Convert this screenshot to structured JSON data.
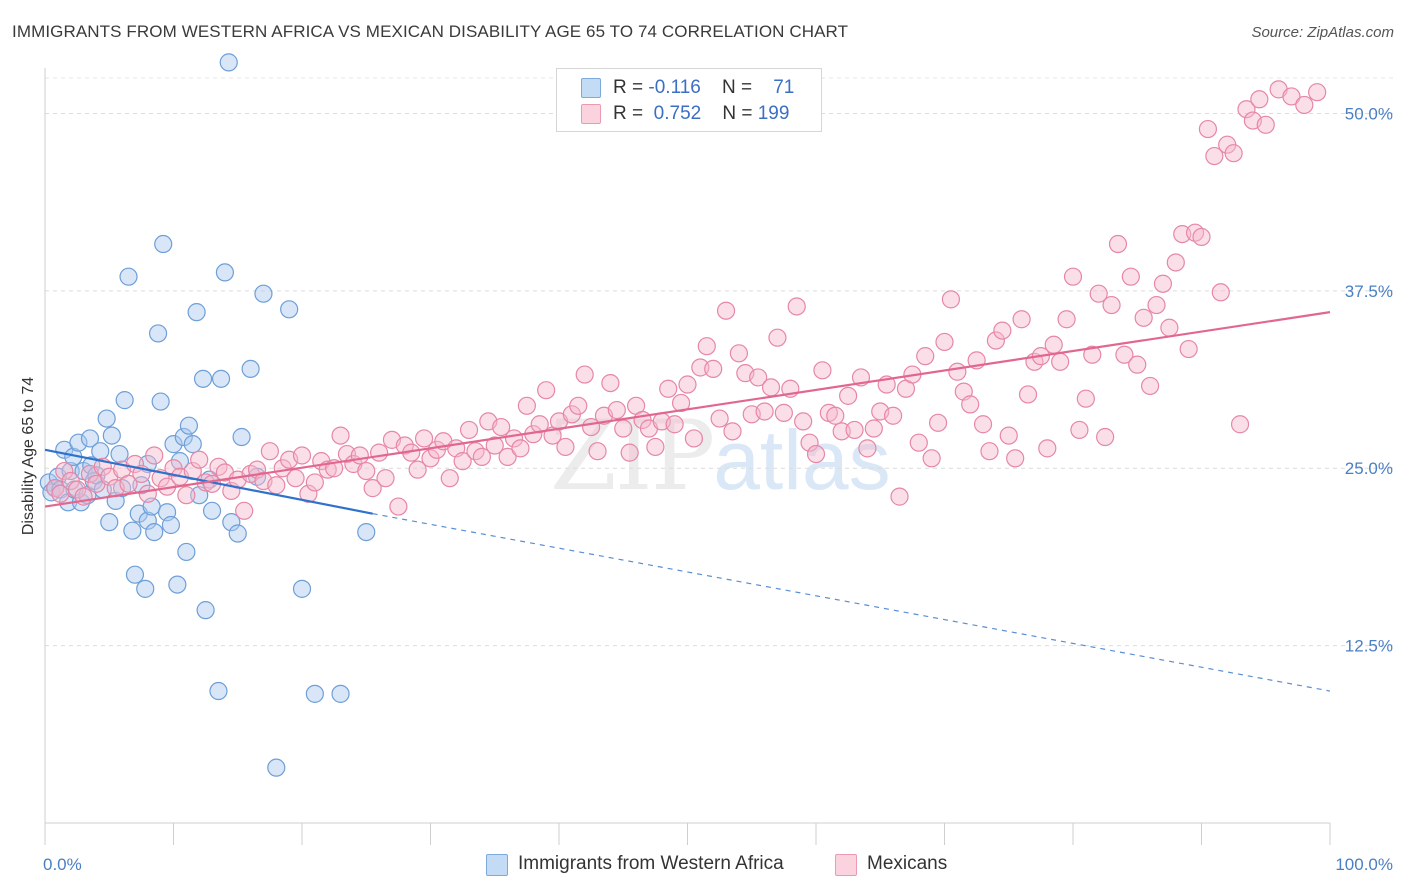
{
  "header": {
    "title": "IMMIGRANTS FROM WESTERN AFRICA VS MEXICAN DISABILITY AGE 65 TO 74 CORRELATION CHART",
    "source": "Source: ZipAtlas.com"
  },
  "legend": {
    "rows": [
      {
        "r_label": "R =",
        "r_value": "-0.116",
        "n_label": "N =",
        "n_value": "71",
        "color": "#a9c8f0"
      },
      {
        "r_label": "R =",
        "r_value": "0.752",
        "n_label": "N =",
        "n_value": "199",
        "color": "#f6b9cc"
      }
    ]
  },
  "watermark": {
    "zip": "ZIP",
    "atlas": "atlas"
  },
  "chart_data": {
    "type": "scatter",
    "title": "IMMIGRANTS FROM WESTERN AFRICA VS MEXICAN DISABILITY AGE 65 TO 74 CORRELATION CHART",
    "xlabel": "",
    "ylabel": "Disability Age 65 to 74",
    "xlim": [
      0,
      100
    ],
    "ylim": [
      0,
      52.5
    ],
    "x_tick_labels": [
      "0.0%",
      "100.0%"
    ],
    "y_ticks": [
      12.5,
      25.0,
      37.5,
      50.0
    ],
    "y_tick_labels": [
      "12.5%",
      "25.0%",
      "37.5%",
      "50.0%"
    ],
    "grid": true,
    "legend_position": "top-center",
    "series": [
      {
        "name": "Immigrants from Western Africa",
        "color": "#a9c8f0",
        "stroke": "#6e9fd8",
        "trend_color": "#2f72cc",
        "trend": {
          "solid": [
            [
              0,
              26.3
            ],
            [
              25.5,
              21.8
            ]
          ],
          "dashed": [
            [
              25.5,
              21.8
            ],
            [
              100,
              9.3
            ]
          ]
        },
        "points": [
          [
            0.3,
            24.0
          ],
          [
            0.5,
            23.3
          ],
          [
            0.8,
            23.6
          ],
          [
            1.0,
            24.4
          ],
          [
            1.2,
            23.5
          ],
          [
            1.5,
            26.3
          ],
          [
            1.8,
            22.6
          ],
          [
            2.0,
            24.8
          ],
          [
            2.2,
            25.8
          ],
          [
            2.3,
            23.5
          ],
          [
            2.6,
            26.8
          ],
          [
            2.8,
            22.6
          ],
          [
            3.0,
            24.8
          ],
          [
            3.3,
            23.1
          ],
          [
            3.5,
            27.1
          ],
          [
            3.6,
            25.2
          ],
          [
            3.8,
            24.1
          ],
          [
            4.0,
            24.5
          ],
          [
            4.3,
            26.2
          ],
          [
            4.5,
            23.5
          ],
          [
            4.8,
            28.5
          ],
          [
            5.0,
            21.2
          ],
          [
            5.2,
            27.3
          ],
          [
            5.5,
            22.7
          ],
          [
            5.8,
            26.0
          ],
          [
            6.0,
            23.6
          ],
          [
            6.2,
            29.8
          ],
          [
            6.5,
            38.5
          ],
          [
            6.8,
            20.6
          ],
          [
            7.0,
            17.5
          ],
          [
            7.3,
            21.8
          ],
          [
            7.5,
            23.8
          ],
          [
            7.8,
            16.5
          ],
          [
            8.0,
            21.3
          ],
          [
            8.3,
            22.3
          ],
          [
            8.5,
            20.5
          ],
          [
            8.8,
            34.5
          ],
          [
            9.0,
            29.7
          ],
          [
            9.2,
            40.8
          ],
          [
            9.5,
            21.9
          ],
          [
            9.8,
            21.0
          ],
          [
            10.0,
            26.7
          ],
          [
            10.3,
            16.8
          ],
          [
            10.5,
            25.5
          ],
          [
            10.8,
            27.2
          ],
          [
            11.0,
            19.1
          ],
          [
            11.2,
            28.0
          ],
          [
            11.5,
            26.7
          ],
          [
            11.8,
            36.0
          ],
          [
            12.0,
            23.1
          ],
          [
            12.3,
            31.3
          ],
          [
            12.5,
            15.0
          ],
          [
            12.8,
            24.2
          ],
          [
            13.0,
            22.0
          ],
          [
            13.5,
            9.3
          ],
          [
            13.7,
            31.3
          ],
          [
            14.0,
            38.8
          ],
          [
            14.3,
            53.6
          ],
          [
            14.5,
            21.2
          ],
          [
            15.0,
            20.4
          ],
          [
            15.3,
            27.2
          ],
          [
            16.0,
            32.0
          ],
          [
            16.5,
            24.4
          ],
          [
            17.0,
            37.3
          ],
          [
            18.0,
            3.9
          ],
          [
            19.0,
            36.2
          ],
          [
            20.0,
            16.5
          ],
          [
            21.0,
            9.1
          ],
          [
            23.0,
            9.1
          ],
          [
            25.0,
            20.5
          ],
          [
            8.0,
            25.3
          ]
        ]
      },
      {
        "name": "Mexicans",
        "color": "#f6b9cc",
        "stroke": "#e687a6",
        "trend_color": "#e2678f",
        "trend": {
          "solid": [
            [
              0,
              22.3
            ],
            [
              100,
              36.0
            ]
          ]
        },
        "points": [
          [
            0.8,
            23.6
          ],
          [
            1.2,
            23.2
          ],
          [
            1.5,
            24.8
          ],
          [
            2.0,
            24.1
          ],
          [
            2.5,
            23.5
          ],
          [
            3.0,
            23.0
          ],
          [
            3.5,
            24.6
          ],
          [
            4.0,
            23.9
          ],
          [
            4.5,
            25.1
          ],
          [
            5.0,
            24.4
          ],
          [
            5.5,
            23.6
          ],
          [
            6.0,
            24.9
          ],
          [
            6.5,
            23.9
          ],
          [
            7.0,
            25.3
          ],
          [
            7.5,
            24.6
          ],
          [
            8.0,
            23.2
          ],
          [
            8.5,
            25.9
          ],
          [
            9.0,
            24.3
          ],
          [
            9.5,
            23.7
          ],
          [
            10.0,
            25.0
          ],
          [
            10.5,
            24.4
          ],
          [
            11.0,
            23.1
          ],
          [
            11.5,
            24.8
          ],
          [
            12.0,
            25.6
          ],
          [
            12.5,
            24.0
          ],
          [
            13.0,
            23.9
          ],
          [
            13.5,
            25.1
          ],
          [
            14.0,
            24.7
          ],
          [
            14.5,
            23.4
          ],
          [
            15.0,
            24.2
          ],
          [
            15.5,
            22.0
          ],
          [
            16.0,
            24.6
          ],
          [
            16.5,
            24.9
          ],
          [
            17.0,
            24.1
          ],
          [
            17.5,
            26.2
          ],
          [
            18.0,
            23.8
          ],
          [
            18.5,
            25.0
          ],
          [
            19.0,
            25.6
          ],
          [
            19.5,
            24.3
          ],
          [
            20.0,
            25.9
          ],
          [
            20.5,
            23.2
          ],
          [
            21.0,
            24.0
          ],
          [
            21.5,
            25.5
          ],
          [
            22.0,
            24.9
          ],
          [
            22.5,
            25.0
          ],
          [
            23.0,
            27.3
          ],
          [
            23.5,
            26.0
          ],
          [
            24.0,
            25.3
          ],
          [
            24.5,
            25.9
          ],
          [
            25.0,
            24.8
          ],
          [
            25.5,
            23.6
          ],
          [
            26.0,
            26.1
          ],
          [
            26.5,
            24.3
          ],
          [
            27.0,
            27.0
          ],
          [
            27.5,
            22.3
          ],
          [
            28.0,
            26.6
          ],
          [
            28.5,
            26.1
          ],
          [
            29.0,
            24.9
          ],
          [
            29.5,
            27.1
          ],
          [
            30.0,
            25.7
          ],
          [
            30.5,
            26.3
          ],
          [
            31.0,
            26.9
          ],
          [
            31.5,
            24.3
          ],
          [
            32.0,
            26.4
          ],
          [
            32.5,
            25.5
          ],
          [
            33.0,
            27.7
          ],
          [
            33.5,
            26.2
          ],
          [
            34.0,
            25.8
          ],
          [
            34.5,
            28.3
          ],
          [
            35.0,
            26.6
          ],
          [
            35.5,
            27.9
          ],
          [
            36.0,
            25.8
          ],
          [
            36.5,
            27.1
          ],
          [
            37.0,
            26.4
          ],
          [
            37.5,
            29.4
          ],
          [
            38.0,
            27.4
          ],
          [
            38.5,
            28.1
          ],
          [
            39.0,
            30.5
          ],
          [
            39.5,
            27.3
          ],
          [
            40.0,
            28.3
          ],
          [
            40.5,
            26.5
          ],
          [
            41.0,
            28.8
          ],
          [
            41.5,
            29.4
          ],
          [
            42.0,
            31.6
          ],
          [
            42.5,
            27.9
          ],
          [
            43.0,
            26.2
          ],
          [
            43.5,
            28.7
          ],
          [
            44.0,
            31.0
          ],
          [
            44.5,
            29.1
          ],
          [
            45.0,
            27.8
          ],
          [
            45.5,
            26.1
          ],
          [
            46.0,
            29.4
          ],
          [
            46.5,
            28.4
          ],
          [
            47.0,
            27.8
          ],
          [
            47.5,
            26.5
          ],
          [
            48.0,
            28.3
          ],
          [
            48.5,
            30.6
          ],
          [
            49.0,
            28.1
          ],
          [
            49.5,
            29.6
          ],
          [
            50.0,
            30.9
          ],
          [
            50.5,
            27.1
          ],
          [
            51.0,
            32.1
          ],
          [
            51.5,
            33.6
          ],
          [
            52.0,
            32.0
          ],
          [
            52.5,
            28.5
          ],
          [
            53.0,
            36.1
          ],
          [
            53.5,
            27.6
          ],
          [
            54.0,
            33.1
          ],
          [
            54.5,
            31.7
          ],
          [
            55.0,
            28.8
          ],
          [
            55.5,
            31.4
          ],
          [
            56.0,
            29.0
          ],
          [
            56.5,
            30.7
          ],
          [
            57.0,
            34.2
          ],
          [
            57.5,
            28.9
          ],
          [
            58.0,
            30.6
          ],
          [
            58.5,
            36.4
          ],
          [
            59.0,
            28.3
          ],
          [
            59.5,
            26.8
          ],
          [
            60.0,
            26.0
          ],
          [
            60.5,
            31.9
          ],
          [
            61.0,
            28.9
          ],
          [
            61.5,
            28.7
          ],
          [
            62.0,
            27.6
          ],
          [
            62.5,
            30.1
          ],
          [
            63.0,
            27.7
          ],
          [
            63.5,
            31.4
          ],
          [
            64.0,
            26.4
          ],
          [
            64.5,
            27.8
          ],
          [
            65.0,
            29.0
          ],
          [
            65.5,
            30.9
          ],
          [
            66.0,
            28.7
          ],
          [
            66.5,
            23.0
          ],
          [
            67.0,
            30.6
          ],
          [
            67.5,
            31.6
          ],
          [
            68.0,
            26.8
          ],
          [
            68.5,
            32.9
          ],
          [
            69.0,
            25.7
          ],
          [
            69.5,
            28.2
          ],
          [
            70.0,
            33.9
          ],
          [
            70.5,
            36.9
          ],
          [
            71.0,
            31.8
          ],
          [
            71.5,
            30.4
          ],
          [
            72.0,
            29.5
          ],
          [
            72.5,
            32.6
          ],
          [
            73.0,
            28.1
          ],
          [
            73.5,
            26.2
          ],
          [
            74.0,
            34.0
          ],
          [
            74.5,
            34.7
          ],
          [
            75.0,
            27.3
          ],
          [
            75.5,
            25.7
          ],
          [
            76.0,
            35.5
          ],
          [
            76.5,
            30.2
          ],
          [
            77.0,
            32.5
          ],
          [
            77.5,
            32.9
          ],
          [
            78.0,
            26.4
          ],
          [
            78.5,
            33.7
          ],
          [
            79.0,
            32.5
          ],
          [
            79.5,
            35.5
          ],
          [
            80.0,
            38.5
          ],
          [
            80.5,
            27.7
          ],
          [
            81.0,
            29.9
          ],
          [
            81.5,
            33.0
          ],
          [
            82.0,
            37.3
          ],
          [
            82.5,
            27.2
          ],
          [
            83.0,
            36.5
          ],
          [
            83.5,
            40.8
          ],
          [
            84.0,
            33.0
          ],
          [
            84.5,
            38.5
          ],
          [
            85.0,
            32.3
          ],
          [
            85.5,
            35.6
          ],
          [
            86.0,
            30.8
          ],
          [
            86.5,
            36.5
          ],
          [
            87.0,
            38.0
          ],
          [
            87.5,
            34.9
          ],
          [
            88.0,
            39.5
          ],
          [
            88.5,
            41.5
          ],
          [
            89.0,
            33.4
          ],
          [
            89.5,
            41.6
          ],
          [
            90.0,
            41.3
          ],
          [
            90.5,
            48.9
          ],
          [
            91.0,
            47.0
          ],
          [
            91.5,
            37.4
          ],
          [
            92.0,
            47.8
          ],
          [
            92.5,
            47.2
          ],
          [
            93.0,
            28.1
          ],
          [
            93.5,
            50.3
          ],
          [
            94.0,
            49.5
          ],
          [
            94.5,
            51.0
          ],
          [
            95.0,
            49.2
          ],
          [
            96.0,
            51.7
          ],
          [
            97.0,
            51.2
          ],
          [
            98.0,
            50.6
          ],
          [
            99.0,
            51.5
          ]
        ]
      }
    ]
  }
}
